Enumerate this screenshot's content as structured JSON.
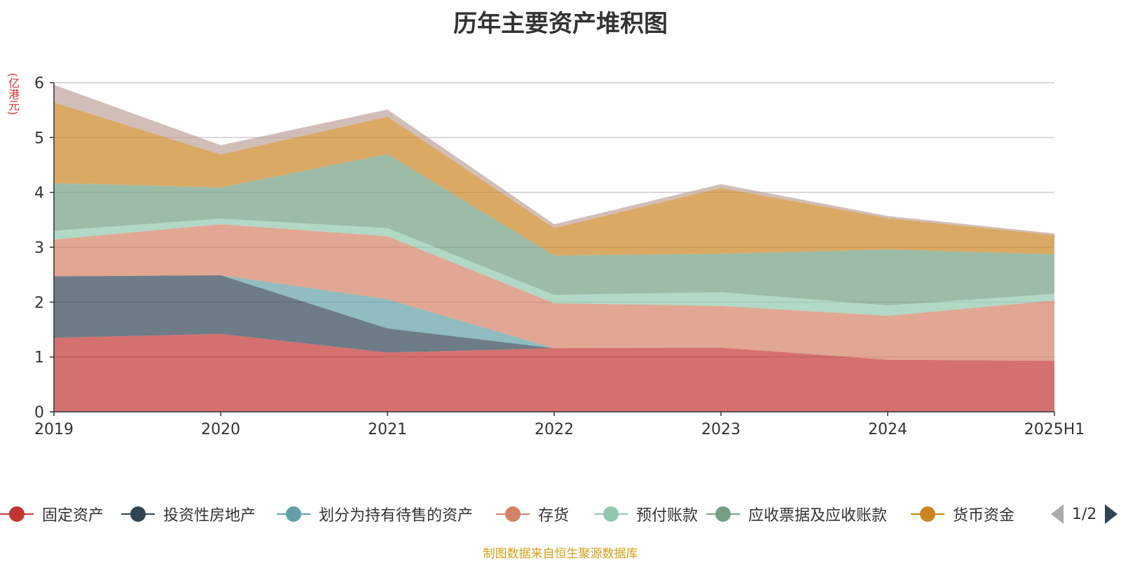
{
  "title": "历年主要资产堆积图",
  "unit_label": "(亿港元)",
  "source": "制图数据来自恒生聚源数据库",
  "pager": {
    "text": "1/2"
  },
  "chart_data": {
    "type": "area",
    "stacked": true,
    "title": "历年主要资产堆积图",
    "ylabel": "(亿港元)",
    "ylim": [
      0,
      6
    ],
    "yticks": [
      0,
      1,
      2,
      3,
      4,
      5,
      6
    ],
    "grid": true,
    "legend_position": "bottom",
    "categories": [
      "2019",
      "2020",
      "2021",
      "2022",
      "2023",
      "2024",
      "2025H1"
    ],
    "series": [
      {
        "name": "固定资产",
        "legend": true,
        "color": "#c23531",
        "values": [
          1.35,
          1.42,
          1.08,
          1.16,
          1.17,
          0.95,
          0.93
        ]
      },
      {
        "name": "投资性房地产",
        "legend": true,
        "color": "#2f4554",
        "values": [
          1.12,
          1.07,
          0.44,
          0.0,
          0.0,
          0.0,
          0.0
        ]
      },
      {
        "name": "划分为持有待售的资产",
        "legend": true,
        "color": "#61a0a8",
        "values": [
          0.0,
          0.0,
          0.53,
          0.0,
          0.0,
          0.0,
          0.0
        ]
      },
      {
        "name": "存货",
        "legend": true,
        "color": "#d48265",
        "values": [
          0.67,
          0.93,
          1.15,
          0.82,
          0.76,
          0.8,
          1.1
        ]
      },
      {
        "name": "预付账款",
        "legend": true,
        "color": "#91c7ae",
        "values": [
          0.16,
          0.1,
          0.15,
          0.15,
          0.25,
          0.19,
          0.12
        ]
      },
      {
        "name": "应收票据及应收账款",
        "legend": true,
        "color": "#749f83",
        "values": [
          0.87,
          0.57,
          1.35,
          0.72,
          0.7,
          1.02,
          0.72
        ]
      },
      {
        "name": "货币资金",
        "legend": true,
        "color": "#ca8622",
        "values": [
          1.47,
          0.6,
          0.68,
          0.5,
          1.2,
          0.57,
          0.35
        ]
      },
      {
        "name": "",
        "legend": false,
        "color": "#bda29a",
        "values": [
          0.32,
          0.17,
          0.13,
          0.07,
          0.07,
          0.04,
          0.03
        ]
      }
    ]
  }
}
